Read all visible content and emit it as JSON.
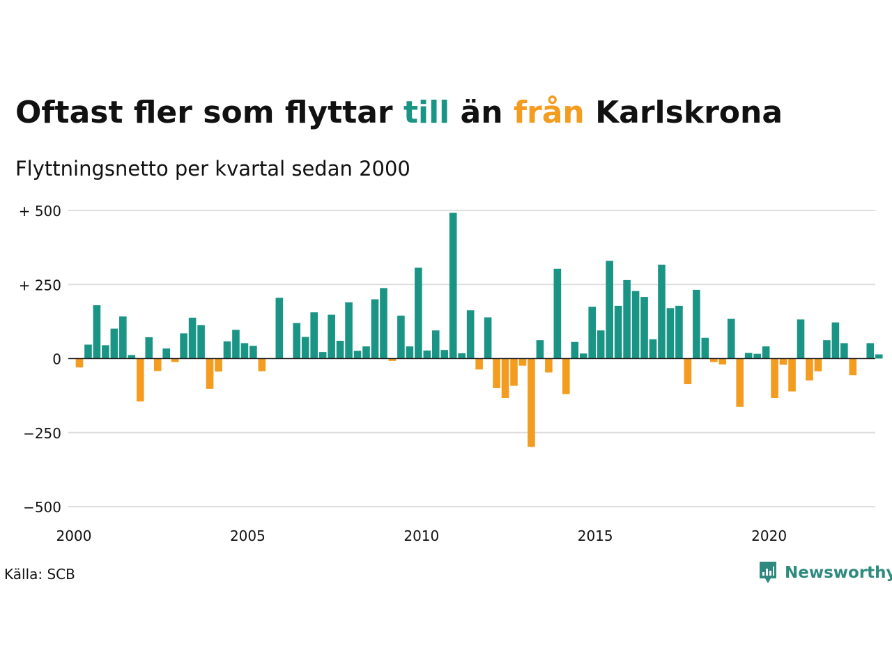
{
  "header": {
    "title_part1": "Oftast fler som flyttar ",
    "title_up": "till",
    "title_part2": " än ",
    "title_down": "från",
    "title_part3": " Karlskrona",
    "subtitle": "Flyttningsnetto per kvartal sedan 2000"
  },
  "footer": {
    "source": "Källa: SCB",
    "brand": "Newsworthy"
  },
  "colors": {
    "positive": "#1a9484",
    "negative": "#f39c1f",
    "grid": "#dddddd",
    "zero_line": "#222222",
    "text": "#111111",
    "brand": "#2e8a7e"
  },
  "chart_data": {
    "type": "bar",
    "title": "Oftast fler som flyttar till än från Karlskrona",
    "subtitle": "Flyttningsnetto per kvartal sedan 2000",
    "xlabel": "",
    "ylabel": "",
    "start_year": 2000,
    "quarters_per_year": 4,
    "ylim": [
      -500,
      500
    ],
    "grid": true,
    "y_ticks": [
      {
        "value": 500,
        "label": "+ 500"
      },
      {
        "value": 250,
        "label": "+ 250"
      },
      {
        "value": 0,
        "label": "0"
      },
      {
        "value": -250,
        "label": "−250"
      },
      {
        "value": -500,
        "label": "−500"
      }
    ],
    "x_ticks": [
      {
        "value": 2000,
        "label": "2000"
      },
      {
        "value": 2005,
        "label": "2005"
      },
      {
        "value": 2010,
        "label": "2010"
      },
      {
        "value": 2015,
        "label": "2015"
      },
      {
        "value": 2020,
        "label": "2020"
      }
    ],
    "values": [
      -30,
      47,
      180,
      45,
      101,
      142,
      12,
      -145,
      72,
      -42,
      34,
      -12,
      85,
      138,
      113,
      -102,
      -44,
      58,
      97,
      52,
      43,
      -43,
      0,
      205,
      0,
      120,
      73,
      156,
      22,
      148,
      60,
      190,
      26,
      41,
      200,
      238,
      -8,
      145,
      41,
      307,
      27,
      95,
      29,
      492,
      18,
      163,
      -37,
      139,
      -100,
      -133,
      -92,
      -24,
      -298,
      62,
      -47,
      303,
      -120,
      56,
      17,
      175,
      95,
      330,
      178,
      265,
      228,
      208,
      65,
      317,
      170,
      178,
      -86,
      232,
      70,
      -12,
      -20,
      134,
      -163,
      19,
      16,
      41,
      -133,
      -21,
      -111,
      132,
      -74,
      -43,
      62,
      122,
      52,
      -56,
      0,
      52,
      14
    ]
  }
}
